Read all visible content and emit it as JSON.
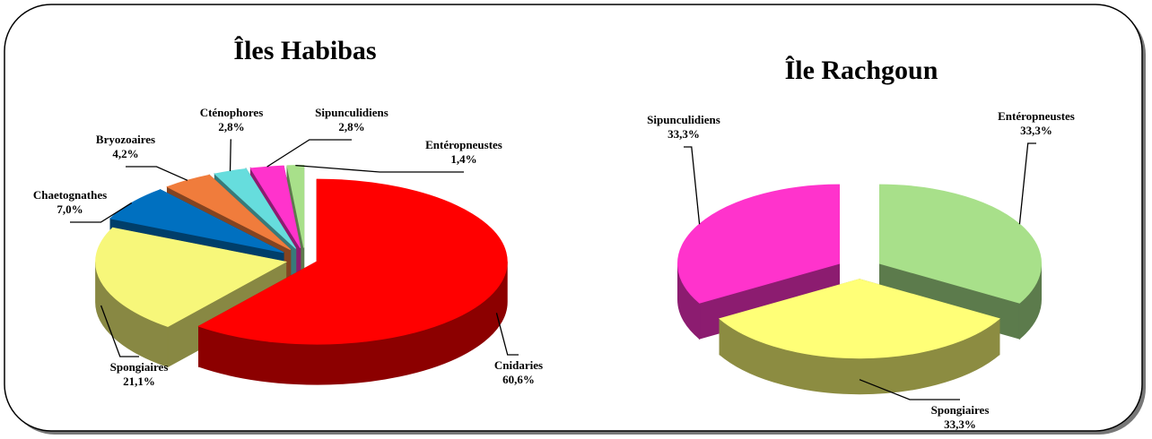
{
  "chart_data": [
    {
      "type": "pie",
      "title": "Îles Habibas",
      "categories": [
        "Cnidaries",
        "Spongiaires",
        "Chaetognathes",
        "Bryozoaires",
        "Cténophores",
        "Sipunculidiens",
        "Entéropneustes"
      ],
      "values": [
        60.6,
        21.1,
        7.0,
        4.2,
        2.8,
        2.8,
        1.4
      ],
      "value_labels": [
        "60,6%",
        "21,1%",
        "7,0%",
        "4,2%",
        "2,8%",
        "2,8%",
        "1,4%"
      ],
      "colors": [
        "#ff0000",
        "#f7f77a",
        "#0070c0",
        "#f07c3c",
        "#66dddd",
        "#ff33cc",
        "#a8e08a"
      ]
    },
    {
      "type": "pie",
      "title": "Île Rachgoun",
      "categories": [
        "Entéropneustes",
        "Spongiaires",
        "Sipunculidiens"
      ],
      "values": [
        33.3,
        33.3,
        33.3
      ],
      "value_labels": [
        "33,3%",
        "33,3%",
        "33,3%"
      ],
      "colors": [
        "#a8e08a",
        "#ffff77",
        "#ff33cc"
      ]
    }
  ]
}
